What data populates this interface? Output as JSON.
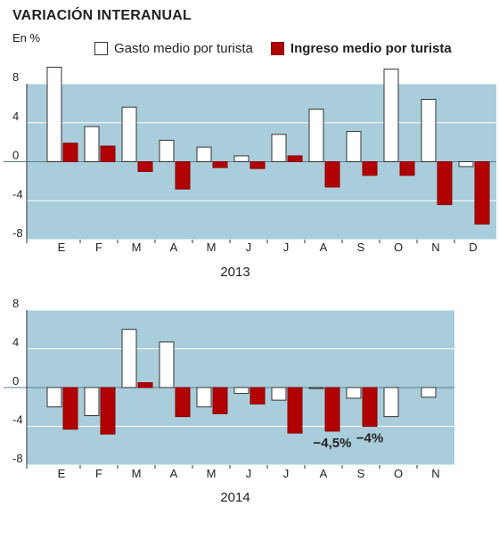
{
  "title": "VARIACIÓN INTERANUAL",
  "subtitle": "En %",
  "legend": [
    {
      "label": "Gasto medio por turista",
      "color": "#ffffff"
    },
    {
      "label": "Ingreso medio por turista",
      "color": "#b00000"
    }
  ],
  "colors": {
    "plot_bg": "#a9cddb",
    "gasto": "#ffffff",
    "ingreso": "#b00000"
  },
  "chart_data": [
    {
      "type": "bar",
      "xlabel": "2013",
      "ylim": [
        -8,
        8
      ],
      "yticks": [
        8,
        4,
        0,
        -4,
        -8
      ],
      "grid": true,
      "categories": [
        "E",
        "F",
        "M",
        "A",
        "M",
        "J",
        "J",
        "A",
        "S",
        "O",
        "N",
        "D"
      ],
      "series": [
        {
          "name": "Gasto medio por turista",
          "values": [
            9.7,
            3.6,
            5.6,
            2.2,
            1.5,
            0.6,
            2.8,
            5.4,
            3.1,
            9.5,
            6.4,
            -0.5
          ]
        },
        {
          "name": "Ingreso medio por turista",
          "values": [
            1.9,
            1.6,
            -1.0,
            -2.8,
            -0.6,
            -0.7,
            0.6,
            -2.6,
            -1.4,
            -1.4,
            -4.4,
            -6.4
          ]
        }
      ]
    },
    {
      "type": "bar",
      "xlabel": "2014",
      "ylim": [
        -8,
        8
      ],
      "yticks": [
        8,
        4,
        0,
        -4,
        -8
      ],
      "grid": true,
      "categories": [
        "E",
        "F",
        "M",
        "A",
        "M",
        "J",
        "J",
        "A",
        "S",
        "O",
        "N"
      ],
      "series": [
        {
          "name": "Gasto medio por turista",
          "values": [
            -2.0,
            -2.9,
            6.0,
            4.7,
            -2.0,
            -0.6,
            -1.3,
            -0.1,
            -1.1,
            -3.0,
            -1.0
          ]
        },
        {
          "name": "Ingreso medio por turista",
          "values": [
            -4.3,
            -4.8,
            0.5,
            -3.0,
            -2.7,
            -1.7,
            -4.7,
            -4.5,
            -4.0,
            null,
            null
          ]
        }
      ],
      "annotations": [
        {
          "text": "−4,5%",
          "category_index": 7,
          "series": 1
        },
        {
          "text": "−4%",
          "category_index": 8,
          "series": 1
        }
      ]
    }
  ]
}
